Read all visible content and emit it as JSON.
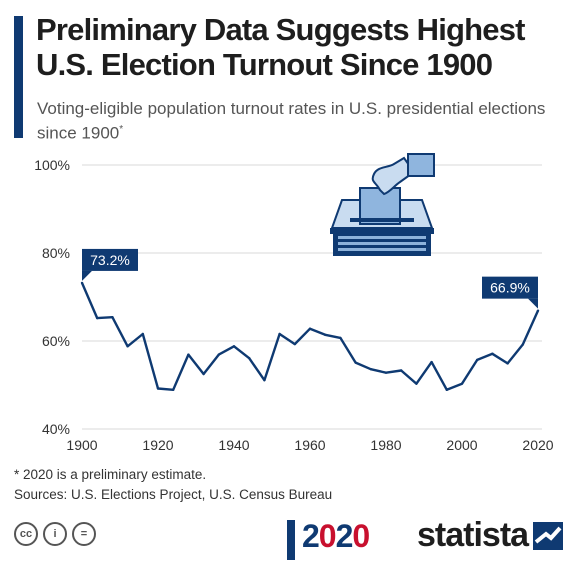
{
  "title": "Preliminary Data Suggests Highest U.S. Election Turnout Since 1900",
  "subtitle": "Voting-eligible population turnout rates in U.S. presidential elections since 1900",
  "subtitle_marker": "*",
  "footnote": "* 2020 is a preliminary estimate.",
  "sources": "Sources: U.S. Elections Project, U.S. Census Bureau",
  "license_icons": [
    "cc-icon",
    "attribution-icon",
    "no-derivatives-icon"
  ],
  "license_labels": [
    "cc",
    "i",
    "="
  ],
  "election_logo": {
    "pre": "2",
    "mid": "0",
    "mid2": "2",
    "end": "0"
  },
  "brand": "statista",
  "colors": {
    "accent": "#0f3a72",
    "line": "#0f3a72",
    "grid": "#d9d9d9"
  },
  "chart_data": {
    "type": "line",
    "title": "",
    "xlabel": "",
    "ylabel": "",
    "xlim": [
      1900,
      2020
    ],
    "ylim": [
      40,
      100
    ],
    "y_ticks": [
      40,
      60,
      80,
      100
    ],
    "y_tick_labels": [
      "40%",
      "60%",
      "80%",
      "100%"
    ],
    "x_ticks": [
      1900,
      1920,
      1940,
      1960,
      1980,
      2000,
      2020
    ],
    "x_tick_labels": [
      "1900",
      "1920",
      "1940",
      "1960",
      "1980",
      "2000",
      "2020"
    ],
    "grid": "horizontal",
    "series": [
      {
        "x": [
          1900,
          1904,
          1908,
          1912,
          1916,
          1920,
          1924,
          1928,
          1932,
          1936,
          1940,
          1944,
          1948,
          1952,
          1956,
          1960,
          1964,
          1968,
          1972,
          1976,
          1980,
          1984,
          1988,
          1992,
          1996,
          2000,
          2004,
          2008,
          2012,
          2016,
          2020
        ],
        "y": [
          73.2,
          65.2,
          65.4,
          58.8,
          61.6,
          49.2,
          48.9,
          56.9,
          52.5,
          56.9,
          58.8,
          56.1,
          51.1,
          61.6,
          59.3,
          62.8,
          61.4,
          60.7,
          55.1,
          53.6,
          52.8,
          53.3,
          50.3,
          55.2,
          48.9,
          50.3,
          55.7,
          57.1,
          54.9,
          59.2,
          66.9
        ]
      }
    ],
    "annotations": [
      {
        "label": "73.2%",
        "x": 1900,
        "y": 73.2
      },
      {
        "label": "66.9%",
        "x": 2020,
        "y": 66.9
      }
    ]
  }
}
